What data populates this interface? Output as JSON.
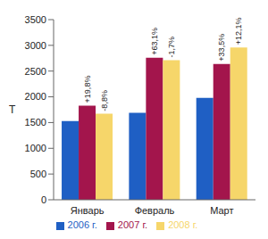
{
  "chart_data": {
    "type": "bar",
    "y_label": "Т",
    "categories": [
      "Январь",
      "Февраль",
      "Март"
    ],
    "series": [
      {
        "name": "2006 г.",
        "color": "#1f5fc4",
        "values": [
          1530,
          1690,
          1980
        ]
      },
      {
        "name": "2007 г.",
        "color": "#a3154c",
        "values": [
          1830,
          2760,
          2640
        ],
        "annotations": [
          "+19,8%",
          "+63,1%",
          "+33,5%"
        ]
      },
      {
        "name": "2008 г.",
        "color": "#f6d66a",
        "values": [
          1670,
          2710,
          2960
        ],
        "annotations": [
          "-8,8%",
          "-1,7%",
          "+12,1%"
        ]
      }
    ],
    "ylim": [
      0,
      3500
    ],
    "yticks": [
      0,
      500,
      1000,
      1500,
      2000,
      2500,
      3000,
      3500
    ],
    "grid": false,
    "legend": "bottom"
  }
}
